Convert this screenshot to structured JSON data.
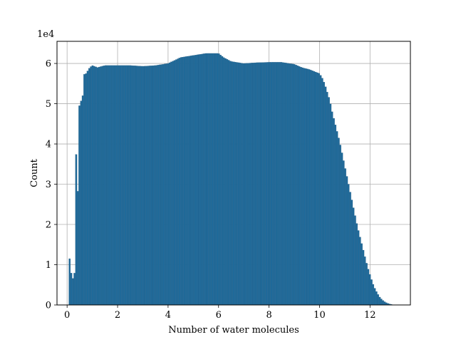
{
  "chart_data": {
    "type": "bar",
    "subtype": "histogram",
    "title": "",
    "xlabel": "Number of water molecules",
    "ylabel": "Count",
    "y_offset_label": "1e4",
    "xlim": [
      -0.4,
      13.6
    ],
    "ylim": [
      0,
      6.55
    ],
    "y_scale_note": "values in units of 1e4",
    "xticks": [
      0,
      2,
      4,
      6,
      8,
      10,
      12
    ],
    "xtick_labels": [
      "0",
      "2",
      "4",
      "6",
      "8",
      "10",
      "12"
    ],
    "yticks": [
      0,
      1,
      2,
      3,
      4,
      5,
      6
    ],
    "ytick_labels": [
      "0",
      "1",
      "2",
      "3",
      "4",
      "5",
      "6"
    ],
    "grid": true,
    "bar_color": "#1f6a9a",
    "bin_width": 0.065,
    "x": [
      0.1,
      0.2,
      0.3,
      0.35,
      0.4,
      0.45,
      0.5,
      0.55,
      0.6,
      0.65,
      0.7,
      0.8,
      0.9,
      1.0,
      1.2,
      1.5,
      2.0,
      2.5,
      3.0,
      3.5,
      4.0,
      4.5,
      5.0,
      5.5,
      5.8,
      6.0,
      6.2,
      6.5,
      7.0,
      7.5,
      8.0,
      8.5,
      9.0,
      9.3,
      9.6,
      9.8,
      10.0,
      10.1,
      10.2,
      10.3,
      10.4,
      10.5,
      10.6,
      10.7,
      10.8,
      10.9,
      11.0,
      11.1,
      11.2,
      11.3,
      11.4,
      11.5,
      11.6,
      11.7,
      11.8,
      11.9,
      12.0,
      12.1,
      12.2,
      12.3,
      12.4,
      12.5,
      12.6,
      12.7,
      12.8,
      12.9
    ],
    "values": [
      1.15,
      0.6,
      0.8,
      3.95,
      2.9,
      2.75,
      5.5,
      5.1,
      4.8,
      5.8,
      5.7,
      5.8,
      5.9,
      5.95,
      5.9,
      5.95,
      5.95,
      5.95,
      5.93,
      5.95,
      6.0,
      6.15,
      6.2,
      6.25,
      6.25,
      6.25,
      6.15,
      6.05,
      6.0,
      6.02,
      6.03,
      6.03,
      5.98,
      5.9,
      5.85,
      5.8,
      5.75,
      5.65,
      5.5,
      5.3,
      5.1,
      4.8,
      4.55,
      4.3,
      4.05,
      3.75,
      3.45,
      3.15,
      2.85,
      2.55,
      2.25,
      1.95,
      1.7,
      1.45,
      1.2,
      0.95,
      0.75,
      0.55,
      0.4,
      0.28,
      0.18,
      0.12,
      0.07,
      0.04,
      0.02,
      0.01
    ]
  }
}
